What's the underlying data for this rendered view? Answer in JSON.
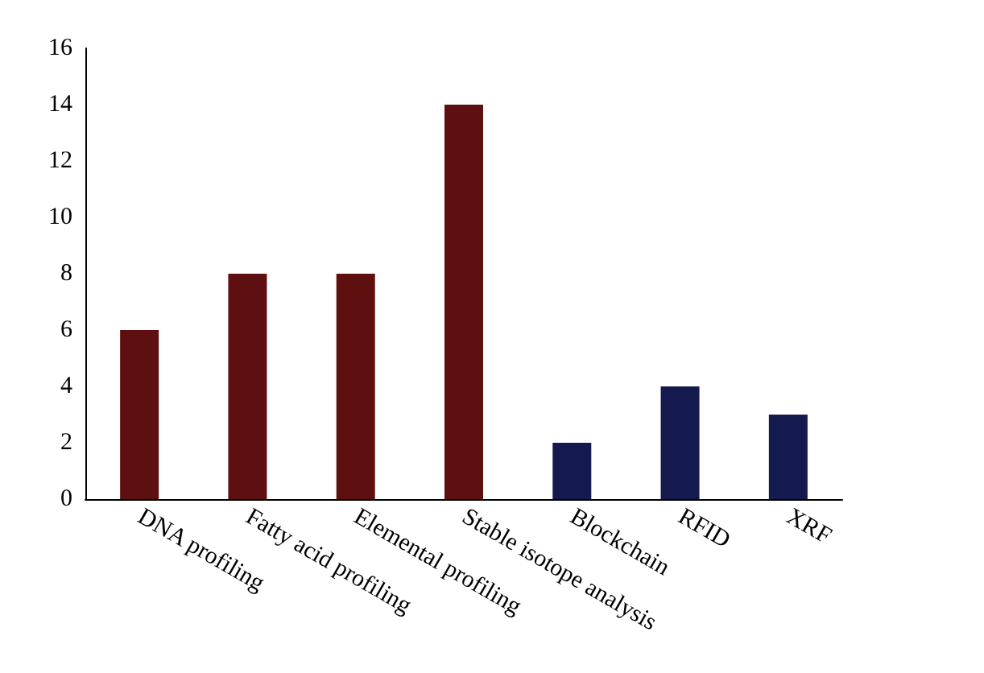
{
  "chart_data": {
    "type": "bar",
    "categories": [
      "DNA profiling",
      "Fatty acid profiling",
      "Elemental profiling",
      "Stable isotope analysis",
      "Blockchain",
      "RFID",
      "XRF"
    ],
    "values": [
      6,
      8,
      8,
      14,
      2,
      4,
      3
    ],
    "colors": [
      "#5e0f10",
      "#5e0f10",
      "#5e0f10",
      "#5e0f10",
      "#141a4e",
      "#141a4e",
      "#141a4e"
    ],
    "ylim": [
      0,
      16
    ],
    "yticks": [
      0,
      2,
      4,
      6,
      8,
      10,
      12,
      14,
      16
    ],
    "grid": false
  }
}
